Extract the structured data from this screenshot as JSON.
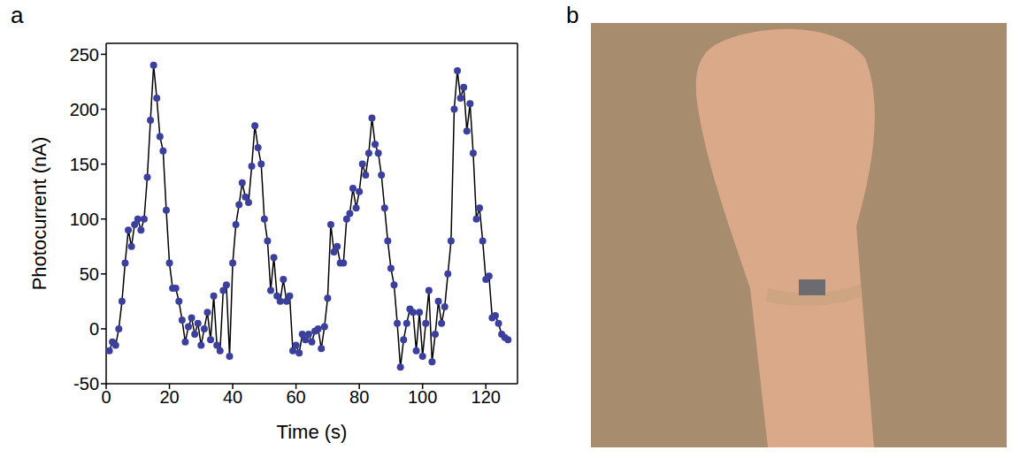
{
  "chart_data": {
    "type": "line",
    "panel_label": "a",
    "x_label": "Time (s)",
    "y_label": "Photocurrent (nA)",
    "xlim": [
      0,
      130
    ],
    "xticks": [
      0,
      20,
      40,
      60,
      80,
      100,
      120
    ],
    "ylim": [
      -50,
      260
    ],
    "yticks": [
      -50,
      0,
      50,
      100,
      150,
      200,
      250
    ],
    "grid": false,
    "series": [
      {
        "color": "#3b3f9e",
        "marker": "circle",
        "line_style": "solid",
        "x": [
          1,
          2,
          3,
          4,
          5,
          6,
          7,
          8,
          9,
          10,
          11,
          12,
          13,
          14,
          15,
          16,
          17,
          18,
          19,
          20,
          21,
          22,
          23,
          24,
          25,
          26,
          27,
          28,
          29,
          30,
          31,
          32,
          33,
          34,
          35,
          36,
          37,
          38,
          39,
          40,
          41,
          42,
          43,
          44,
          45,
          46,
          47,
          48,
          49,
          50,
          51,
          52,
          53,
          54,
          55,
          56,
          57,
          58,
          59,
          60,
          61,
          62,
          63,
          64,
          65,
          66,
          67,
          68,
          69,
          70,
          71,
          72,
          73,
          74,
          75,
          76,
          77,
          78,
          79,
          80,
          81,
          82,
          83,
          84,
          85,
          86,
          87,
          88,
          89,
          90,
          91,
          92,
          93,
          94,
          95,
          96,
          97,
          98,
          99,
          100,
          101,
          102,
          103,
          104,
          105,
          106,
          107,
          108,
          109,
          110,
          111,
          112,
          113,
          114,
          115,
          116,
          117,
          118,
          119,
          120,
          121,
          122,
          123,
          124,
          125,
          126,
          127
        ],
        "values": [
          -20,
          -12,
          -15,
          0,
          25,
          60,
          90,
          75,
          95,
          100,
          90,
          100,
          138,
          190,
          240,
          210,
          175,
          162,
          108,
          60,
          37,
          37,
          25,
          8,
          -12,
          2,
          10,
          -5,
          5,
          -15,
          0,
          15,
          -10,
          30,
          -15,
          -20,
          35,
          40,
          -25,
          60,
          95,
          113,
          133,
          120,
          115,
          148,
          185,
          165,
          150,
          100,
          80,
          35,
          65,
          30,
          25,
          45,
          25,
          30,
          -20,
          -15,
          -22,
          -5,
          -10,
          -5,
          -12,
          -2,
          0,
          -18,
          2,
          28,
          95,
          70,
          75,
          60,
          60,
          100,
          105,
          128,
          110,
          125,
          150,
          140,
          160,
          192,
          168,
          160,
          140,
          110,
          80,
          55,
          40,
          5,
          -35,
          -10,
          5,
          18,
          15,
          -20,
          15,
          -25,
          5,
          35,
          -30,
          -5,
          25,
          5,
          20,
          50,
          80,
          200,
          235,
          210,
          220,
          180,
          205,
          160,
          100,
          110,
          80,
          45,
          48,
          10,
          12,
          5,
          -5,
          -8,
          -10
        ]
      }
    ]
  },
  "image_panel": {
    "panel_label": "b"
  }
}
